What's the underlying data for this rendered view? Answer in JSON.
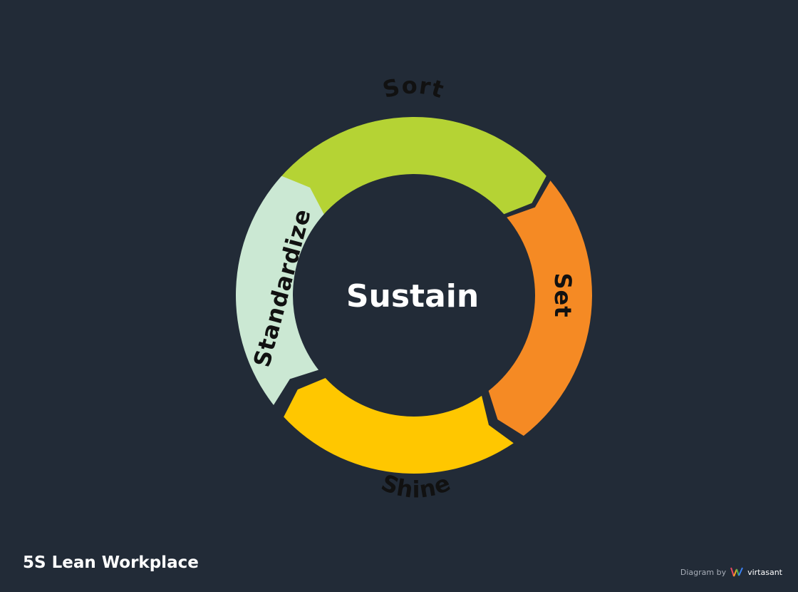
{
  "diagram": {
    "center_label": "Sustain",
    "segments": [
      {
        "id": "sort",
        "label": "Sort",
        "color": "#b5d334"
      },
      {
        "id": "set",
        "label": "Set",
        "color": "#f58a24"
      },
      {
        "id": "shine",
        "label": "Shine",
        "color": "#ffc700"
      },
      {
        "id": "standardize",
        "label": "Standardize",
        "color": "#cbe8d3"
      }
    ]
  },
  "footer": {
    "title": "5S Lean Workplace",
    "credit_prefix": "Diagram by",
    "credit_brand": "virtasant"
  }
}
